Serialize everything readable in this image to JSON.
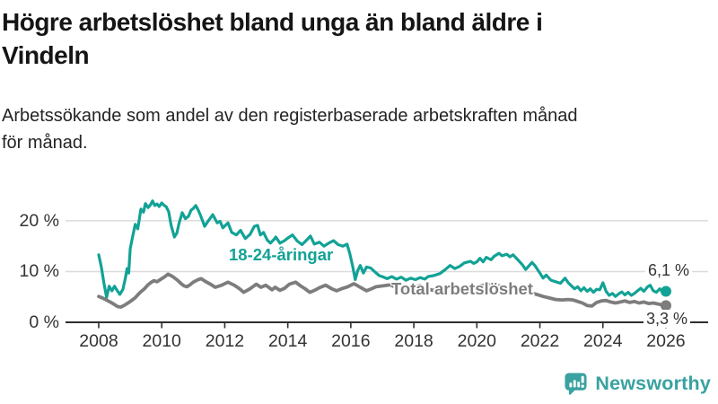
{
  "header": {
    "title_line1": "Högre arbetslöshet bland unga än bland äldre i",
    "title_line2": "Vindeln",
    "subtitle_line1": "Arbetssökande som andel av den registerbaserade arbetskraften månad",
    "subtitle_line2": "för månad."
  },
  "footer": {
    "brand": "Newsworthy",
    "brand_color": "#38a2a1"
  },
  "chart_data": {
    "type": "line",
    "title": "Högre arbetslöshet bland unga än bland äldre i Vindeln",
    "subtitle": "Arbetssökande som andel av den registerbaserade arbetskraften månad för månad.",
    "unit": "%",
    "x_label": "",
    "y_label": "",
    "x_range": [
      2008,
      2026
    ],
    "ylim": [
      0,
      25
    ],
    "grid": "horizontal",
    "legend_position": "inline-labels",
    "x_ticks": [
      2008,
      2010,
      2012,
      2014,
      2016,
      2018,
      2020,
      2022,
      2024,
      2026
    ],
    "y_ticks": [
      {
        "value": 0,
        "label": "0 %"
      },
      {
        "value": 10,
        "label": "10 %"
      },
      {
        "value": 20,
        "label": "20 %"
      }
    ],
    "colors": {
      "youth_line": "#12a296",
      "total_line": "#7d7d7d",
      "gridline": "#dcdcdc",
      "axis": "#2e2e2e",
      "text": "#333333"
    },
    "series": [
      {
        "name": "18-24-åringar",
        "color": "#12a296",
        "end_value": 6.1,
        "end_label": "6,1 %",
        "points": [
          [
            2008.0,
            13.3
          ],
          [
            2008.08,
            11.0
          ],
          [
            2008.17,
            7.5
          ],
          [
            2008.25,
            4.9
          ],
          [
            2008.33,
            7.1
          ],
          [
            2008.42,
            6.2
          ],
          [
            2008.5,
            7.1
          ],
          [
            2008.58,
            6.3
          ],
          [
            2008.67,
            5.5
          ],
          [
            2008.77,
            6.5
          ],
          [
            2008.85,
            8.8
          ],
          [
            2008.9,
            10.6
          ],
          [
            2008.95,
            9.7
          ],
          [
            2009.0,
            14.5
          ],
          [
            2009.08,
            17.0
          ],
          [
            2009.16,
            19.3
          ],
          [
            2009.24,
            18.4
          ],
          [
            2009.34,
            22.3
          ],
          [
            2009.42,
            21.7
          ],
          [
            2009.48,
            23.4
          ],
          [
            2009.57,
            22.6
          ],
          [
            2009.65,
            23.2
          ],
          [
            2009.71,
            23.9
          ],
          [
            2009.78,
            23.0
          ],
          [
            2009.85,
            23.3
          ],
          [
            2009.92,
            22.8
          ],
          [
            2010.0,
            23.5
          ],
          [
            2010.08,
            23.0
          ],
          [
            2010.14,
            22.8
          ],
          [
            2010.22,
            21.8
          ],
          [
            2010.3,
            19.0
          ],
          [
            2010.4,
            16.8
          ],
          [
            2010.48,
            17.6
          ],
          [
            2010.55,
            19.5
          ],
          [
            2010.65,
            21.6
          ],
          [
            2010.75,
            20.4
          ],
          [
            2010.85,
            20.9
          ],
          [
            2010.93,
            22.1
          ],
          [
            2011.0,
            22.4
          ],
          [
            2011.08,
            23.0
          ],
          [
            2011.15,
            22.2
          ],
          [
            2011.22,
            21.2
          ],
          [
            2011.36,
            18.9
          ],
          [
            2011.48,
            20.0
          ],
          [
            2011.62,
            21.2
          ],
          [
            2011.76,
            19.6
          ],
          [
            2011.85,
            19.9
          ],
          [
            2011.94,
            18.6
          ],
          [
            2012.04,
            19.2
          ],
          [
            2012.1,
            19.6
          ],
          [
            2012.22,
            17.7
          ],
          [
            2012.37,
            17.2
          ],
          [
            2012.5,
            18.1
          ],
          [
            2012.65,
            16.5
          ],
          [
            2012.8,
            17.3
          ],
          [
            2012.94,
            18.9
          ],
          [
            2013.04,
            19.1
          ],
          [
            2013.13,
            17.2
          ],
          [
            2013.23,
            17.7
          ],
          [
            2013.35,
            16.2
          ],
          [
            2013.45,
            15.6
          ],
          [
            2013.56,
            16.3
          ],
          [
            2013.62,
            16.8
          ],
          [
            2013.75,
            15.6
          ],
          [
            2013.9,
            16.1
          ],
          [
            2014.0,
            16.6
          ],
          [
            2014.15,
            17.2
          ],
          [
            2014.3,
            16.0
          ],
          [
            2014.45,
            15.3
          ],
          [
            2014.6,
            16.2
          ],
          [
            2014.72,
            17.0
          ],
          [
            2014.84,
            15.4
          ],
          [
            2015.0,
            15.8
          ],
          [
            2015.15,
            15.0
          ],
          [
            2015.3,
            15.6
          ],
          [
            2015.45,
            16.1
          ],
          [
            2015.6,
            15.3
          ],
          [
            2015.75,
            15.0
          ],
          [
            2015.88,
            15.4
          ],
          [
            2015.97,
            13.5
          ],
          [
            2016.06,
            11.0
          ],
          [
            2016.14,
            8.4
          ],
          [
            2016.22,
            10.2
          ],
          [
            2016.3,
            11.2
          ],
          [
            2016.4,
            9.7
          ],
          [
            2016.5,
            10.9
          ],
          [
            2016.63,
            10.7
          ],
          [
            2016.77,
            9.9
          ],
          [
            2016.9,
            9.2
          ],
          [
            2017.0,
            9.0
          ],
          [
            2017.15,
            8.6
          ],
          [
            2017.3,
            9.0
          ],
          [
            2017.45,
            8.5
          ],
          [
            2017.6,
            8.9
          ],
          [
            2017.75,
            8.3
          ],
          [
            2017.9,
            8.7
          ],
          [
            2018.05,
            8.4
          ],
          [
            2018.2,
            8.8
          ],
          [
            2018.35,
            8.5
          ],
          [
            2018.45,
            9.0
          ],
          [
            2018.63,
            9.2
          ],
          [
            2018.83,
            9.6
          ],
          [
            2019.0,
            10.4
          ],
          [
            2019.15,
            11.2
          ],
          [
            2019.3,
            10.6
          ],
          [
            2019.45,
            11.0
          ],
          [
            2019.6,
            11.7
          ],
          [
            2019.8,
            12.0
          ],
          [
            2019.9,
            11.6
          ],
          [
            2020.0,
            11.9
          ],
          [
            2020.1,
            12.6
          ],
          [
            2020.2,
            11.9
          ],
          [
            2020.3,
            12.8
          ],
          [
            2020.45,
            12.3
          ],
          [
            2020.55,
            13.0
          ],
          [
            2020.7,
            13.6
          ],
          [
            2020.8,
            13.1
          ],
          [
            2020.95,
            13.4
          ],
          [
            2021.05,
            12.9
          ],
          [
            2021.15,
            13.3
          ],
          [
            2021.3,
            12.3
          ],
          [
            2021.45,
            11.3
          ],
          [
            2021.55,
            10.4
          ],
          [
            2021.65,
            11.1
          ],
          [
            2021.75,
            11.8
          ],
          [
            2021.85,
            11.1
          ],
          [
            2022.0,
            9.7
          ],
          [
            2022.1,
            8.7
          ],
          [
            2022.2,
            9.3
          ],
          [
            2022.35,
            8.3
          ],
          [
            2022.5,
            8.0
          ],
          [
            2022.65,
            7.7
          ],
          [
            2022.8,
            8.7
          ],
          [
            2022.9,
            7.8
          ],
          [
            2023.0,
            7.2
          ],
          [
            2023.1,
            6.6
          ],
          [
            2023.2,
            7.0
          ],
          [
            2023.3,
            6.2
          ],
          [
            2023.4,
            6.8
          ],
          [
            2023.5,
            6.1
          ],
          [
            2023.6,
            6.6
          ],
          [
            2023.7,
            5.9
          ],
          [
            2023.8,
            6.5
          ],
          [
            2023.9,
            6.4
          ],
          [
            2024.0,
            7.8
          ],
          [
            2024.1,
            6.1
          ],
          [
            2024.2,
            5.3
          ],
          [
            2024.3,
            5.7
          ],
          [
            2024.4,
            5.1
          ],
          [
            2024.5,
            5.6
          ],
          [
            2024.6,
            6.0
          ],
          [
            2024.7,
            5.4
          ],
          [
            2024.8,
            5.9
          ],
          [
            2024.9,
            5.3
          ],
          [
            2025.0,
            5.7
          ],
          [
            2025.1,
            6.2
          ],
          [
            2025.2,
            6.7
          ],
          [
            2025.3,
            6.1
          ],
          [
            2025.42,
            7.0
          ],
          [
            2025.5,
            7.3
          ],
          [
            2025.6,
            6.2
          ],
          [
            2025.7,
            5.9
          ],
          [
            2025.8,
            6.6
          ],
          [
            2025.9,
            5.9
          ],
          [
            2026.0,
            6.1
          ]
        ]
      },
      {
        "name": "Total arbetslöshet",
        "color": "#7d7d7d",
        "end_value": 3.3,
        "end_label": "3,3 %",
        "points": [
          [
            2008.0,
            5.1
          ],
          [
            2008.15,
            4.7
          ],
          [
            2008.3,
            4.2
          ],
          [
            2008.45,
            3.7
          ],
          [
            2008.6,
            3.1
          ],
          [
            2008.7,
            3.0
          ],
          [
            2008.8,
            3.3
          ],
          [
            2008.9,
            3.7
          ],
          [
            2009.0,
            4.1
          ],
          [
            2009.15,
            4.8
          ],
          [
            2009.3,
            5.8
          ],
          [
            2009.45,
            6.6
          ],
          [
            2009.55,
            7.3
          ],
          [
            2009.65,
            7.8
          ],
          [
            2009.75,
            8.2
          ],
          [
            2009.85,
            8.0
          ],
          [
            2009.95,
            8.4
          ],
          [
            2010.1,
            9.0
          ],
          [
            2010.2,
            9.5
          ],
          [
            2010.35,
            9.0
          ],
          [
            2010.5,
            8.3
          ],
          [
            2010.6,
            7.7
          ],
          [
            2010.7,
            7.2
          ],
          [
            2010.8,
            7.0
          ],
          [
            2010.9,
            7.4
          ],
          [
            2011.0,
            7.9
          ],
          [
            2011.15,
            8.4
          ],
          [
            2011.25,
            8.6
          ],
          [
            2011.4,
            8.0
          ],
          [
            2011.55,
            7.5
          ],
          [
            2011.7,
            6.9
          ],
          [
            2011.9,
            7.3
          ],
          [
            2012.1,
            7.9
          ],
          [
            2012.3,
            7.3
          ],
          [
            2012.45,
            6.7
          ],
          [
            2012.6,
            5.9
          ],
          [
            2012.8,
            6.6
          ],
          [
            2013.0,
            7.5
          ],
          [
            2013.15,
            6.9
          ],
          [
            2013.3,
            7.3
          ],
          [
            2013.5,
            6.4
          ],
          [
            2013.6,
            6.9
          ],
          [
            2013.75,
            6.3
          ],
          [
            2013.9,
            6.7
          ],
          [
            2014.05,
            7.5
          ],
          [
            2014.25,
            7.9
          ],
          [
            2014.4,
            7.2
          ],
          [
            2014.55,
            6.6
          ],
          [
            2014.7,
            5.9
          ],
          [
            2014.85,
            6.3
          ],
          [
            2015.0,
            6.8
          ],
          [
            2015.2,
            7.3
          ],
          [
            2015.4,
            6.6
          ],
          [
            2015.55,
            6.2
          ],
          [
            2015.7,
            6.6
          ],
          [
            2015.9,
            7.0
          ],
          [
            2016.1,
            7.6
          ],
          [
            2016.3,
            6.9
          ],
          [
            2016.5,
            6.2
          ],
          [
            2016.65,
            6.6
          ],
          [
            2016.8,
            7.0
          ],
          [
            2017.05,
            7.2
          ],
          [
            2017.25,
            7.4
          ],
          [
            2017.45,
            6.8
          ],
          [
            2017.65,
            6.4
          ],
          [
            2017.85,
            6.6
          ],
          [
            2018.0,
            7.0
          ],
          [
            2018.2,
            7.2
          ],
          [
            2018.4,
            6.7
          ],
          [
            2018.6,
            6.3
          ],
          [
            2018.8,
            6.5
          ],
          [
            2019.0,
            6.8
          ],
          [
            2019.2,
            7.2
          ],
          [
            2019.4,
            6.8
          ],
          [
            2019.6,
            6.5
          ],
          [
            2019.8,
            6.7
          ],
          [
            2020.0,
            6.9
          ],
          [
            2020.25,
            7.4
          ],
          [
            2020.5,
            7.5
          ],
          [
            2020.75,
            7.1
          ],
          [
            2021.0,
            6.6
          ],
          [
            2021.3,
            6.2
          ],
          [
            2021.6,
            5.9
          ],
          [
            2021.9,
            5.5
          ],
          [
            2022.1,
            5.1
          ],
          [
            2022.3,
            4.8
          ],
          [
            2022.5,
            4.5
          ],
          [
            2022.7,
            4.4
          ],
          [
            2022.9,
            4.5
          ],
          [
            2023.05,
            4.4
          ],
          [
            2023.2,
            4.1
          ],
          [
            2023.35,
            3.8
          ],
          [
            2023.5,
            3.3
          ],
          [
            2023.65,
            3.2
          ],
          [
            2023.8,
            3.9
          ],
          [
            2023.95,
            4.2
          ],
          [
            2024.1,
            4.3
          ],
          [
            2024.25,
            4.0
          ],
          [
            2024.4,
            3.8
          ],
          [
            2024.55,
            4.0
          ],
          [
            2024.7,
            4.2
          ],
          [
            2024.85,
            3.9
          ],
          [
            2025.0,
            4.1
          ],
          [
            2025.15,
            3.8
          ],
          [
            2025.3,
            4.0
          ],
          [
            2025.45,
            3.7
          ],
          [
            2025.6,
            3.8
          ],
          [
            2025.75,
            3.6
          ],
          [
            2025.9,
            3.4
          ],
          [
            2026.0,
            3.3
          ]
        ]
      }
    ]
  }
}
